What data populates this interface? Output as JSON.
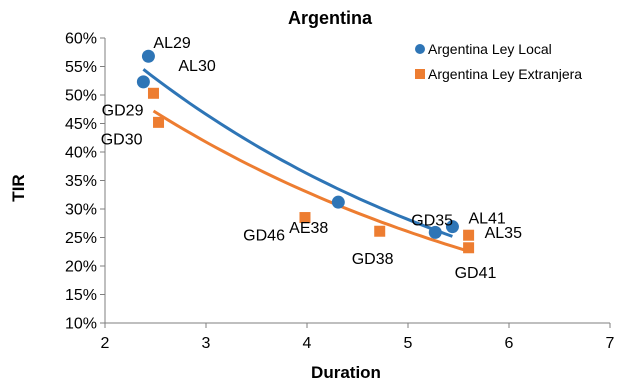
{
  "chart_data": {
    "type": "scatter",
    "title": "Argentina",
    "xlabel": "Duration",
    "ylabel": "TIR",
    "xlim": [
      2,
      7
    ],
    "ylim": [
      10,
      60
    ],
    "x_ticks": [
      2,
      3,
      4,
      5,
      6,
      7
    ],
    "y_ticks": [
      10,
      15,
      20,
      25,
      30,
      35,
      40,
      45,
      50,
      55,
      60
    ],
    "y_tick_format": "percent",
    "grid": false,
    "legend_position": "top-right",
    "series": [
      {
        "name": "Argentina Ley Local",
        "marker": "circle",
        "color": "#2E75B6",
        "points": [
          {
            "label": "AL29",
            "x": 2.43,
            "y": 56.8
          },
          {
            "label": "AL30",
            "x": 2.38,
            "y": 52.3
          },
          {
            "label": "AE38",
            "x": 4.31,
            "y": 31.2
          },
          {
            "label": "GD35",
            "x": 5.27,
            "y": 25.9
          },
          {
            "label": "AL41",
            "x": 5.44,
            "y": 26.9
          }
        ],
        "trendline": {
          "x_start": 2.38,
          "x_end": 5.44,
          "y_start": 54.5,
          "y_end": 25.2
        }
      },
      {
        "name": "Argentina Ley Extranjera",
        "marker": "square",
        "color": "#ED7D31",
        "points": [
          {
            "label": "GD29",
            "x": 2.48,
            "y": 50.3
          },
          {
            "label": "GD30",
            "x": 2.53,
            "y": 45.2
          },
          {
            "label": "GD46",
            "x": 3.98,
            "y": 28.5
          },
          {
            "label": "GD38",
            "x": 4.72,
            "y": 26.1
          },
          {
            "label": "AL35",
            "x": 5.6,
            "y": 25.4
          },
          {
            "label": "GD41",
            "x": 5.6,
            "y": 23.2
          }
        ],
        "trendline": {
          "x_start": 2.48,
          "x_end": 5.6,
          "y_start": 47.2,
          "y_end": 22.6
        }
      }
    ]
  }
}
